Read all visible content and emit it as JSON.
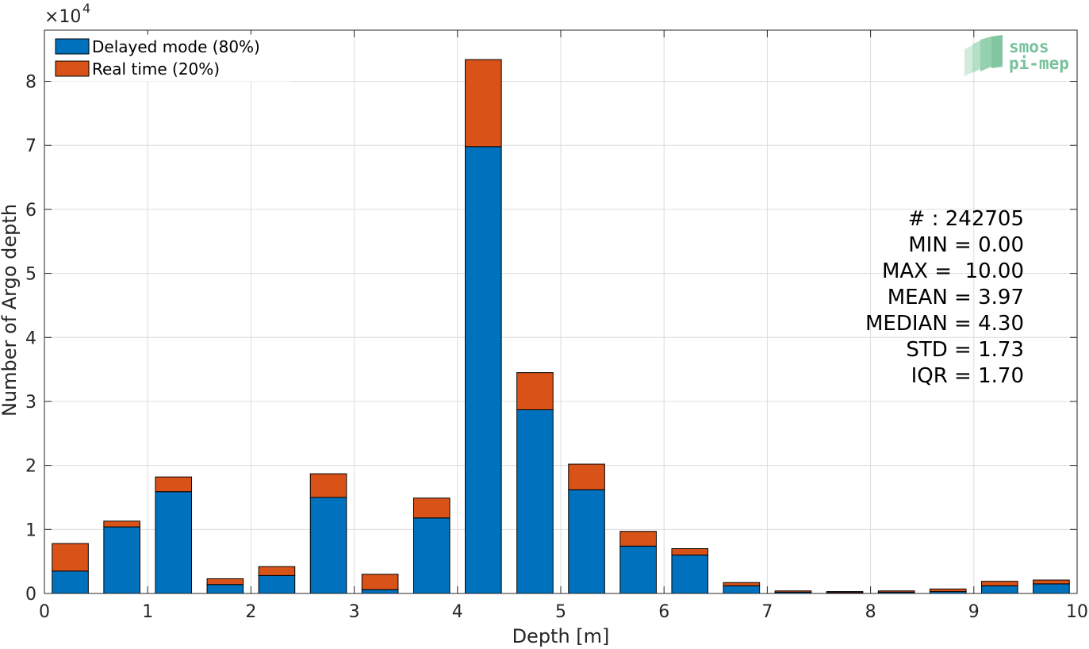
{
  "chart_data": {
    "type": "bar",
    "stacked": true,
    "x": [
      0.25,
      0.75,
      1.25,
      1.75,
      2.25,
      2.75,
      3.25,
      3.75,
      4.25,
      4.75,
      5.25,
      5.75,
      6.25,
      6.75,
      7.25,
      7.75,
      8.25,
      8.75,
      9.25,
      9.75
    ],
    "series": [
      {
        "name": "Delayed mode (80%)",
        "color": "#0072BD",
        "values": [
          3500,
          10400,
          15900,
          1400,
          2800,
          15000,
          600,
          11800,
          69800,
          28700,
          16200,
          7400,
          6000,
          1200,
          200,
          150,
          200,
          300,
          1200,
          1500
        ]
      },
      {
        "name": "Real time (20%)",
        "color": "#D95319",
        "values": [
          4300,
          900,
          2300,
          900,
          1400,
          3700,
          2400,
          3100,
          13600,
          5800,
          4000,
          2300,
          1000,
          500,
          200,
          150,
          200,
          400,
          700,
          600
        ]
      }
    ],
    "xlabel": "Depth [m]",
    "ylabel": "Number of Argo depth",
    "xlim": [
      0,
      10
    ],
    "ylim": [
      0,
      88000
    ],
    "xticks": [
      "0",
      "1",
      "2",
      "3",
      "4",
      "5",
      "6",
      "7",
      "8",
      "9",
      "10"
    ],
    "yticks": [
      "0",
      "1",
      "2",
      "3",
      "4",
      "5",
      "6",
      "7",
      "8"
    ],
    "y_exponent": "4",
    "grid": true,
    "legend_position": "top-left"
  },
  "stats": {
    "count": "# : 242705",
    "min": "MIN = 0.00",
    "max": "MAX =  10.00",
    "mean": "MEAN = 3.97",
    "median": "MEDIAN = 4.30",
    "std": "STD = 1.73",
    "iqr": "IQR = 1.70"
  },
  "logo": {
    "line1": "smos",
    "line2": "pi-mep"
  }
}
